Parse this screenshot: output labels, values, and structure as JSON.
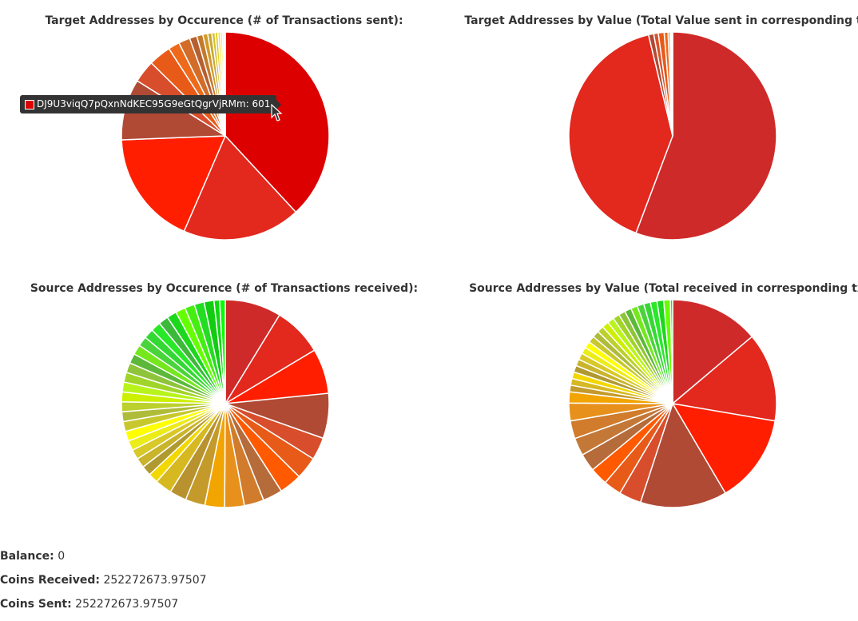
{
  "chart_data": [
    {
      "type": "pie",
      "title": "Target Addresses by Occurence (# of Transactions sent):",
      "values": [
        601,
        290,
        282,
        150,
        55,
        55,
        28,
        28,
        18,
        15,
        12,
        10,
        8,
        7,
        6,
        5,
        4,
        3
      ],
      "colors": [
        "#dd0000",
        "#e3281e",
        "#ff1f00",
        "#b04a35",
        "#d84e2c",
        "#e85a18",
        "#ee6a1a",
        "#d26c28",
        "#b65f30",
        "#c47a2a",
        "#d29a2a",
        "#c7a72e",
        "#d6bf2a",
        "#e1cf1c",
        "#eee01c",
        "#f2ee24",
        "#f7f254",
        "#fbf7a8"
      ],
      "tooltip": {
        "label": "DJ9U3viqQ7pQxnNdKEC95G9eGtQgrVjRMm",
        "value": "601",
        "color": "#dd0000"
      }
    },
    {
      "type": "pie",
      "title": "Target Addresses by Value (Total Value sent in corresponding tx):",
      "values": [
        552,
        401,
        8,
        7,
        9,
        6,
        3,
        2,
        1,
        1
      ],
      "colors": [
        "#cf2a2a",
        "#e3281e",
        "#b04a35",
        "#d8522c",
        "#e85a18",
        "#ee6a1a",
        "#d26c28",
        "#c7a72e",
        "#e1cf1c",
        "#f2ee24"
      ]
    },
    {
      "type": "pie",
      "title": "Source Addresses by Occurence (# of Transactions received):",
      "values": [
        40,
        35,
        32,
        32,
        16,
        16,
        16,
        14,
        14,
        14,
        14,
        14,
        12,
        12,
        7,
        7,
        7,
        7,
        7,
        7,
        7,
        7,
        7,
        7,
        7,
        7,
        7,
        7,
        7,
        7,
        7,
        7,
        7,
        7,
        7,
        7,
        7,
        7,
        4,
        4
      ],
      "colors": [
        "#cf2a2a",
        "#e3281e",
        "#ff1f00",
        "#b04a35",
        "#d84e2c",
        "#e85a18",
        "#ff5a00",
        "#b56b3a",
        "#d07c2c",
        "#e8901c",
        "#f2a400",
        "#c49a2a",
        "#b8922e",
        "#d6b820",
        "#f2d800",
        "#b09a30",
        "#c9b42c",
        "#d8c828",
        "#ecec18",
        "#ffff00",
        "#c8c82e",
        "#aebc3a",
        "#bcd02e",
        "#ccf000",
        "#b8f41c",
        "#a0d428",
        "#8ec43a",
        "#5cb83a",
        "#74e81c",
        "#48d43a",
        "#34d834",
        "#28e828",
        "#3cb83a",
        "#1cd81c",
        "#66ff00",
        "#44ee11",
        "#22dd22",
        "#11cc11",
        "#0fd80f",
        "#00ff00"
      ],
      "start_deg": 0
    },
    {
      "type": "pie",
      "title": "Source Addresses by Value (Total received in corresponding tx):",
      "values": [
        40,
        40,
        40,
        39,
        10,
        8,
        8,
        8,
        8,
        8,
        8,
        5,
        3,
        3,
        3,
        3,
        3,
        3,
        3,
        3,
        3,
        3,
        3,
        3,
        3,
        3,
        3,
        3,
        3,
        3,
        3,
        3,
        3,
        3,
        1
      ],
      "colors": [
        "#cf2a2a",
        "#e3281e",
        "#ff1f00",
        "#b04a35",
        "#d84e2c",
        "#e85a18",
        "#ff5a00",
        "#b56b3a",
        "#c47838",
        "#d07c2c",
        "#e8901c",
        "#f2a400",
        "#c49a2a",
        "#d6b820",
        "#f2d800",
        "#b09a30",
        "#c9b42c",
        "#d8c828",
        "#ecec18",
        "#ffff00",
        "#c8c82e",
        "#aebc3a",
        "#bcd02e",
        "#ccf000",
        "#b8f41c",
        "#a0d428",
        "#8ec43a",
        "#5cb83a",
        "#74e81c",
        "#48d43a",
        "#34d834",
        "#28e828",
        "#1cd81c",
        "#66ff00",
        "#22dd22"
      ]
    }
  ],
  "stats": {
    "balance_label": "Balance:",
    "balance_value": "0",
    "received_label": "Coins Received:",
    "received_value": "252272673.97507",
    "sent_label": "Coins Sent:",
    "sent_value": "252272673.97507"
  }
}
